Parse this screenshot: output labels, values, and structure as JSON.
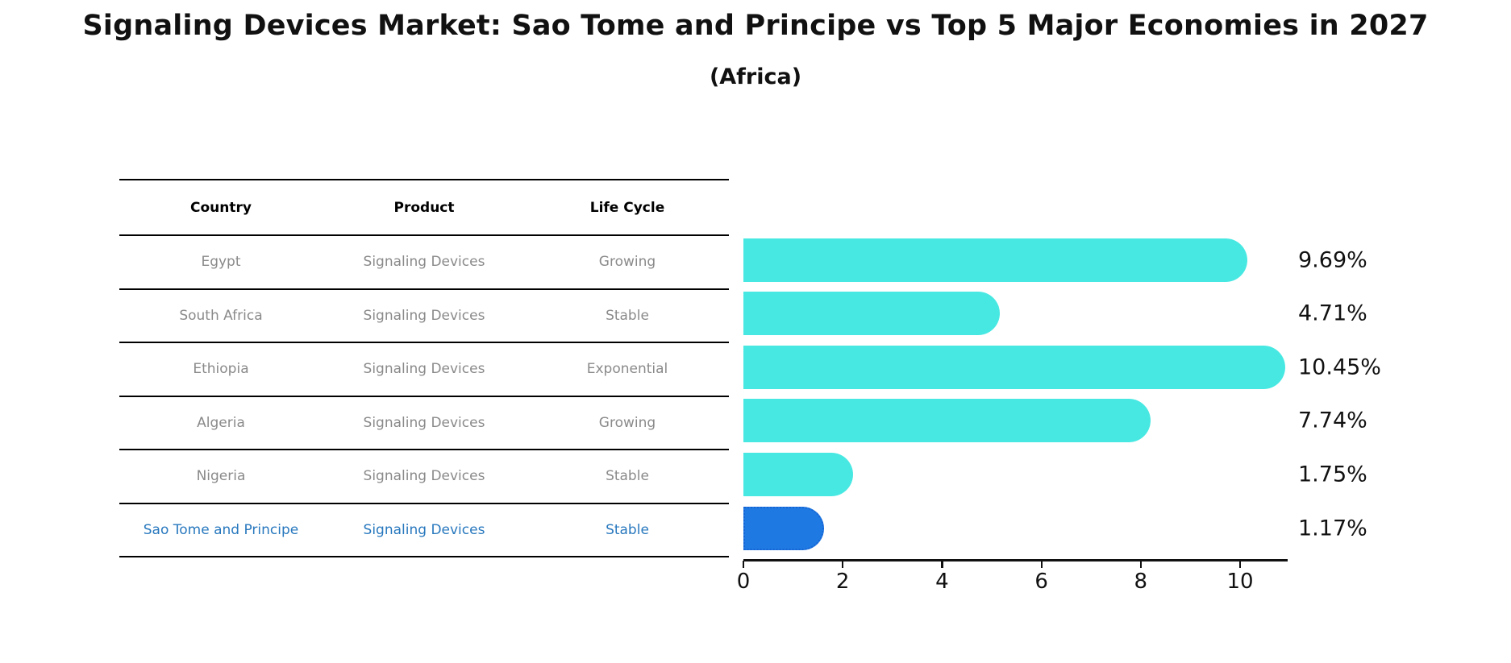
{
  "title": "Signaling Devices Market: Sao Tome and Principe vs Top 5 Major Economies in 2027",
  "subtitle": "(Africa)",
  "table": {
    "headers": [
      "Country",
      "Product",
      "Life Cycle"
    ],
    "rows": [
      {
        "country": "Egypt",
        "product": "Signaling Devices",
        "life_cycle": "Growing"
      },
      {
        "country": "South Africa",
        "product": "Signaling Devices",
        "life_cycle": "Stable"
      },
      {
        "country": "Ethiopia",
        "product": "Signaling Devices",
        "life_cycle": "Exponential"
      },
      {
        "country": "Algeria",
        "product": "Signaling Devices",
        "life_cycle": "Growing"
      },
      {
        "country": "Nigeria",
        "product": "Signaling Devices",
        "life_cycle": "Stable"
      },
      {
        "country": "Sao Tome and Principe",
        "product": "Signaling Devices",
        "life_cycle": "Stable"
      }
    ]
  },
  "chart_data": {
    "type": "bar",
    "orientation": "horizontal",
    "title": "Signaling Devices Market: Sao Tome and Principe vs Top 5 Major Economies in 2027",
    "subtitle": "(Africa)",
    "categories": [
      "Egypt",
      "South Africa",
      "Ethiopia",
      "Algeria",
      "Nigeria",
      "Sao Tome and Principe"
    ],
    "values": [
      9.69,
      4.71,
      10.45,
      7.74,
      1.75,
      1.17
    ],
    "value_labels": [
      "9.69%",
      "4.71%",
      "10.45%",
      "7.74%",
      "1.75%",
      "1.17%"
    ],
    "xlabel": "",
    "ylabel": "",
    "xlim": [
      0,
      11
    ],
    "x_ticks": [
      0,
      2,
      4,
      6,
      8,
      10
    ],
    "grid": false,
    "legend": false,
    "bar_color": "#48e8e2",
    "highlight_index": 5,
    "highlight_color": "#1e7ae2",
    "highlight_border_color": "#1663d6",
    "highlight_text_color": "#2878be",
    "row_text_color": "#8a8a8a"
  }
}
